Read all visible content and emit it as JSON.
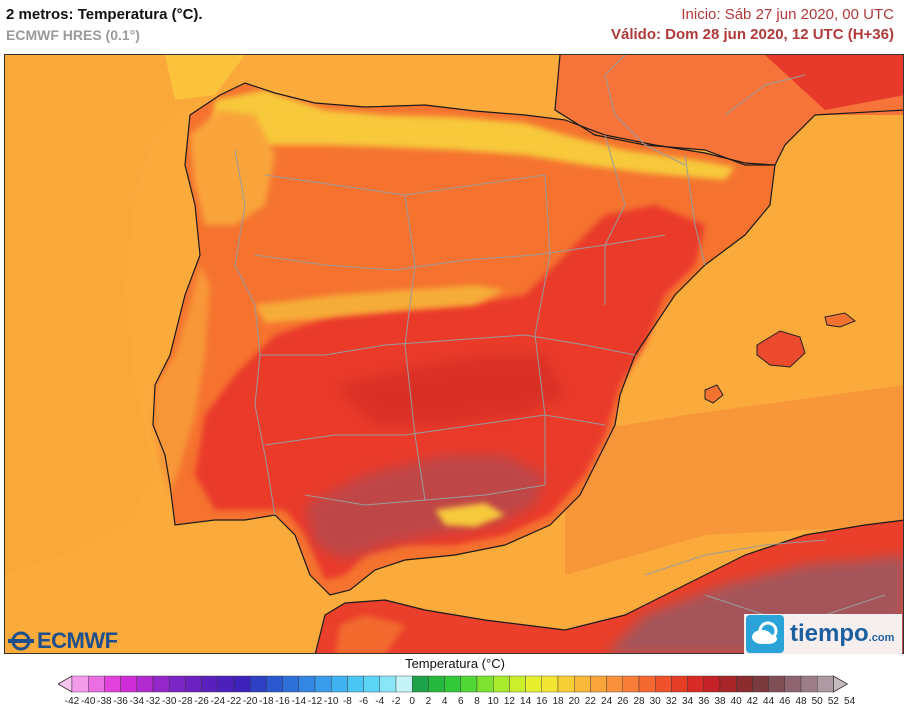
{
  "header": {
    "title": "2 metros: Temperatura (°C).",
    "model": "ECMWF HRES (0.1°)",
    "init": "Inicio: Sáb 27 jun 2020, 00 UTC",
    "valid": "Válido: Dom 28 jun 2020, 12 UTC (H+36)"
  },
  "logos": {
    "ecmwf": "ECMWF",
    "tiempo_word": "tiempo",
    "tiempo_domain": ".com"
  },
  "legend": {
    "title": "Temperatura (°C)",
    "ticks": [
      "-42",
      "-40",
      "-38",
      "-36",
      "-34",
      "-32",
      "-30",
      "-28",
      "-26",
      "-24",
      "-22",
      "-20",
      "-18",
      "-16",
      "-14",
      "-12",
      "-10",
      "-8",
      "-6",
      "-4",
      "-2",
      "0",
      "2",
      "4",
      "6",
      "8",
      "10",
      "12",
      "14",
      "16",
      "18",
      "20",
      "22",
      "24",
      "26",
      "28",
      "30",
      "32",
      "34",
      "36",
      "38",
      "40",
      "42",
      "44",
      "46",
      "48",
      "50",
      "52",
      "54"
    ],
    "colors": [
      "#f7c6f0",
      "#f19be9",
      "#ea6fe2",
      "#e143da",
      "#cf2dd6",
      "#b12ad0",
      "#9327c9",
      "#7a25c4",
      "#6b22c0",
      "#5a20bd",
      "#4b20bb",
      "#3c22bb",
      "#2f3fc4",
      "#2b57cf",
      "#2f6fda",
      "#3486e3",
      "#3a9cea",
      "#41b1f0",
      "#4bc5f3",
      "#5ad6f4",
      "#8ae6f6",
      "#c5f3f8",
      "#1ea34a",
      "#26b83e",
      "#34c93a",
      "#52d636",
      "#7ee230",
      "#a8ea2c",
      "#cbef2c",
      "#e6f02f",
      "#f3e533",
      "#f6cf36",
      "#f8b93a",
      "#f9a53c",
      "#f9913c",
      "#f87d38",
      "#f46832",
      "#ef522b",
      "#e63d27",
      "#d92b25",
      "#c42228",
      "#a82528",
      "#8a2b2d",
      "#7a3a3e",
      "#804e55",
      "#8d6470",
      "#9c7c87",
      "#ad9aa2",
      "#c4bcc0"
    ]
  }
}
